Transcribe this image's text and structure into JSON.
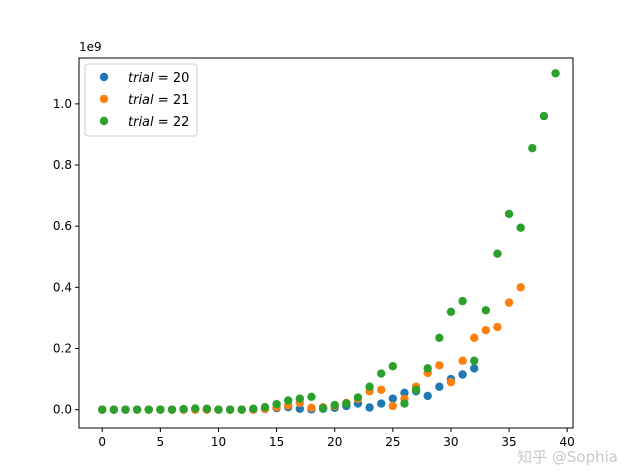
{
  "chart_data": {
    "type": "scatter",
    "title": "",
    "xlabel": "",
    "ylabel": "",
    "xlim": [
      -2,
      40.5
    ],
    "ylim": [
      -0.06,
      1.15
    ],
    "x_ticks": [
      0,
      5,
      10,
      15,
      20,
      25,
      30,
      35,
      40
    ],
    "y_ticks": [
      0.0,
      0.2,
      0.4,
      0.6,
      0.8,
      1.0
    ],
    "x_tick_labels": [
      "0",
      "5",
      "10",
      "15",
      "20",
      "25",
      "30",
      "35",
      "40"
    ],
    "y_tick_labels": [
      "0.0",
      "0.2",
      "0.4",
      "0.6",
      "0.8",
      "1.0"
    ],
    "y_offset_label": "1e9",
    "grid": false,
    "legend_position": "top-left",
    "series": [
      {
        "name": "trial = 20",
        "legend_var": "trial",
        "legend_op": " = ",
        "legend_val": "20",
        "color": "#1f77b4",
        "points": [
          [
            0,
            0.0
          ],
          [
            1,
            0.0
          ],
          [
            2,
            0.0
          ],
          [
            3,
            0.0
          ],
          [
            4,
            0.0
          ],
          [
            5,
            0.0
          ],
          [
            6,
            0.0
          ],
          [
            7,
            0.0
          ],
          [
            8,
            0.0
          ],
          [
            9,
            0.0
          ],
          [
            10,
            0.0
          ],
          [
            11,
            0.0
          ],
          [
            12,
            0.0
          ],
          [
            13,
            0.0
          ],
          [
            14,
            0.002
          ],
          [
            15,
            0.005
          ],
          [
            16,
            0.008
          ],
          [
            17,
            0.003
          ],
          [
            18,
            0.001
          ],
          [
            19,
            0.003
          ],
          [
            20,
            0.006
          ],
          [
            21,
            0.012
          ],
          [
            22,
            0.02
          ],
          [
            23,
            0.007
          ],
          [
            24,
            0.02
          ],
          [
            25,
            0.036
          ],
          [
            26,
            0.055
          ],
          [
            27,
            0.06
          ],
          [
            28,
            0.045
          ],
          [
            29,
            0.075
          ],
          [
            30,
            0.1
          ],
          [
            31,
            0.115
          ],
          [
            32,
            0.135
          ]
        ]
      },
      {
        "name": "trial = 21",
        "legend_var": "trial",
        "legend_op": " = ",
        "legend_val": "21",
        "color": "#ff7f0e",
        "points": [
          [
            0,
            0.0
          ],
          [
            1,
            0.0
          ],
          [
            2,
            0.0
          ],
          [
            3,
            0.0
          ],
          [
            4,
            0.0
          ],
          [
            5,
            0.0
          ],
          [
            6,
            0.0
          ],
          [
            7,
            0.0
          ],
          [
            8,
            0.0
          ],
          [
            9,
            0.0
          ],
          [
            10,
            0.0
          ],
          [
            11,
            0.0
          ],
          [
            12,
            0.0
          ],
          [
            13,
            0.0
          ],
          [
            14,
            0.003
          ],
          [
            15,
            0.008
          ],
          [
            16,
            0.014
          ],
          [
            17,
            0.022
          ],
          [
            18,
            0.006
          ],
          [
            19,
            0.008
          ],
          [
            20,
            0.012
          ],
          [
            21,
            0.022
          ],
          [
            22,
            0.035
          ],
          [
            23,
            0.06
          ],
          [
            24,
            0.065
          ],
          [
            25,
            0.012
          ],
          [
            26,
            0.035
          ],
          [
            27,
            0.075
          ],
          [
            28,
            0.12
          ],
          [
            29,
            0.145
          ],
          [
            30,
            0.09
          ],
          [
            31,
            0.16
          ],
          [
            32,
            0.235
          ],
          [
            33,
            0.26
          ],
          [
            34,
            0.27
          ],
          [
            35,
            0.35
          ],
          [
            36,
            0.4
          ]
        ]
      },
      {
        "name": "trial = 22",
        "legend_var": "trial",
        "legend_op": " = ",
        "legend_val": "22",
        "color": "#2ca02c",
        "points": [
          [
            0,
            0.0
          ],
          [
            1,
            0.0
          ],
          [
            2,
            0.0
          ],
          [
            3,
            0.0
          ],
          [
            4,
            0.0
          ],
          [
            5,
            0.0
          ],
          [
            6,
            0.0
          ],
          [
            7,
            0.002
          ],
          [
            8,
            0.004
          ],
          [
            9,
            0.003
          ],
          [
            10,
            0.0
          ],
          [
            11,
            0.0
          ],
          [
            12,
            0.0
          ],
          [
            13,
            0.003
          ],
          [
            14,
            0.008
          ],
          [
            15,
            0.018
          ],
          [
            16,
            0.03
          ],
          [
            17,
            0.036
          ],
          [
            18,
            0.042
          ],
          [
            19,
            0.005
          ],
          [
            20,
            0.015
          ],
          [
            21,
            0.02
          ],
          [
            22,
            0.04
          ],
          [
            23,
            0.075
          ],
          [
            24,
            0.118
          ],
          [
            25,
            0.142
          ],
          [
            26,
            0.02
          ],
          [
            27,
            0.065
          ],
          [
            28,
            0.135
          ],
          [
            29,
            0.235
          ],
          [
            30,
            0.32
          ],
          [
            31,
            0.355
          ],
          [
            32,
            0.16
          ],
          [
            33,
            0.325
          ],
          [
            34,
            0.51
          ],
          [
            35,
            0.64
          ],
          [
            36,
            0.595
          ],
          [
            37,
            0.855
          ],
          [
            38,
            0.96
          ],
          [
            39,
            1.1
          ]
        ]
      }
    ]
  },
  "watermark": {
    "text": "知乎 @Sophia"
  }
}
